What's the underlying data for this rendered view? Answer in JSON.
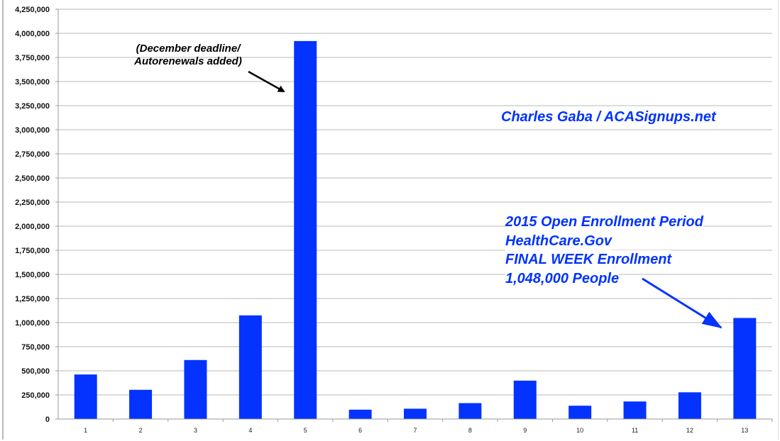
{
  "chart_data": {
    "type": "bar",
    "title": "",
    "xlabel": "",
    "ylabel": "",
    "categories": [
      "1",
      "2",
      "3",
      "4",
      "5",
      "6",
      "7",
      "8",
      "9",
      "10",
      "11",
      "12",
      "13"
    ],
    "values": [
      462000,
      303000,
      612000,
      1075000,
      3920000,
      97000,
      107000,
      165000,
      398000,
      138000,
      182000,
      277000,
      1048000
    ],
    "ylim": [
      0,
      4250000
    ],
    "yticks": [
      0,
      250000,
      500000,
      750000,
      1000000,
      1250000,
      1500000,
      1750000,
      2000000,
      2250000,
      2500000,
      2750000,
      3000000,
      3250000,
      3500000,
      3750000,
      4000000,
      4250000
    ],
    "ytick_labels": [
      "0",
      "250,000",
      "500,000",
      "750,000",
      "1,000,000",
      "1,250,000",
      "1,500,000",
      "1,750,000",
      "2,000,000",
      "2,250,000",
      "2,500,000",
      "2,750,000",
      "3,000,000",
      "3,250,000",
      "3,500,000",
      "3,750,000",
      "4,000,000",
      "4,250,000"
    ],
    "grid": true,
    "legend": "none",
    "bar_color": "#0433ff",
    "annotations": {
      "december": [
        "(December deadline/",
        "Autorenewals added)"
      ],
      "credit": "Charles Gaba / ACASignups.net",
      "final_week": [
        "2015 Open Enrollment Period",
        "HealthCare.Gov",
        "FINAL WEEK Enrollment",
        "1,048,000 People"
      ]
    },
    "annotation_colors": {
      "december": "#000000",
      "credit": "#0433ff",
      "final_week": "#0433ff"
    }
  }
}
